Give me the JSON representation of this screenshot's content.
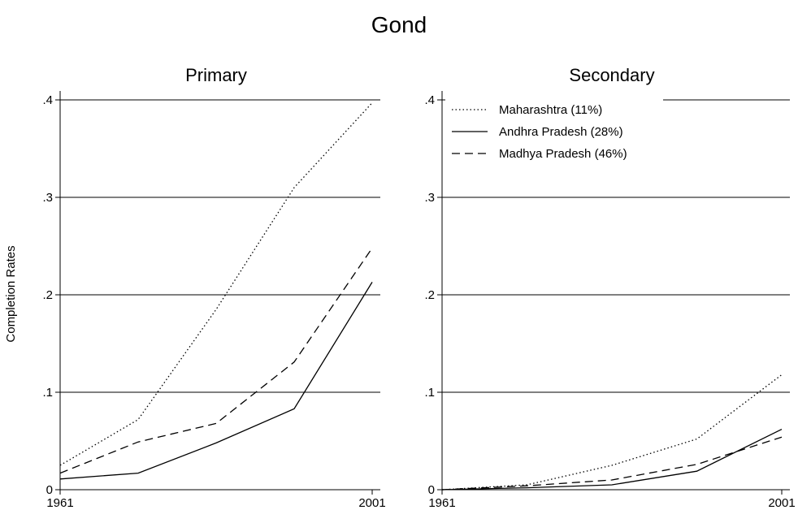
{
  "chart_data": {
    "type": "line",
    "title": "Gond",
    "ylabel": "Completion Rates",
    "ylim": [
      0,
      0.4
    ],
    "yticks": [
      0,
      0.1,
      0.2,
      0.3,
      0.4
    ],
    "yticklabels": [
      "0",
      ".1",
      ".2",
      ".3",
      ".4"
    ],
    "x": [
      1961,
      1971,
      1981,
      1991,
      2001
    ],
    "xticks": [
      1961,
      2001
    ],
    "xticklabels": [
      "1961",
      "2001"
    ],
    "grid": true,
    "legend": {
      "placement": "top-left of right panel",
      "entries": [
        {
          "name": "Maharashtra (11%)",
          "style": "dotted"
        },
        {
          "name": "Andhra Pradesh (28%)",
          "style": "solid"
        },
        {
          "name": "Madhya Pradesh (46%)",
          "style": "dashed"
        }
      ]
    },
    "panels": [
      {
        "title": "Primary",
        "series": [
          {
            "name": "Maharashtra (11%)",
            "style": "dotted",
            "values": [
              0.025,
              0.072,
              0.185,
              0.31,
              0.397
            ]
          },
          {
            "name": "Andhra Pradesh (28%)",
            "style": "solid",
            "values": [
              0.011,
              0.017,
              0.048,
              0.083,
              0.213
            ]
          },
          {
            "name": "Madhya Pradesh (46%)",
            "style": "dashed",
            "values": [
              0.017,
              0.049,
              0.068,
              0.131,
              0.248
            ]
          }
        ]
      },
      {
        "title": "Secondary",
        "series": [
          {
            "name": "Maharashtra (11%)",
            "style": "dotted",
            "values": [
              0.0,
              0.005,
              0.025,
              0.052,
              0.118
            ]
          },
          {
            "name": "Andhra Pradesh (28%)",
            "style": "solid",
            "values": [
              0.0,
              0.002,
              0.005,
              0.019,
              0.062
            ]
          },
          {
            "name": "Madhya Pradesh (46%)",
            "style": "dashed",
            "values": [
              0.0,
              0.004,
              0.01,
              0.026,
              0.054
            ]
          }
        ]
      }
    ]
  }
}
